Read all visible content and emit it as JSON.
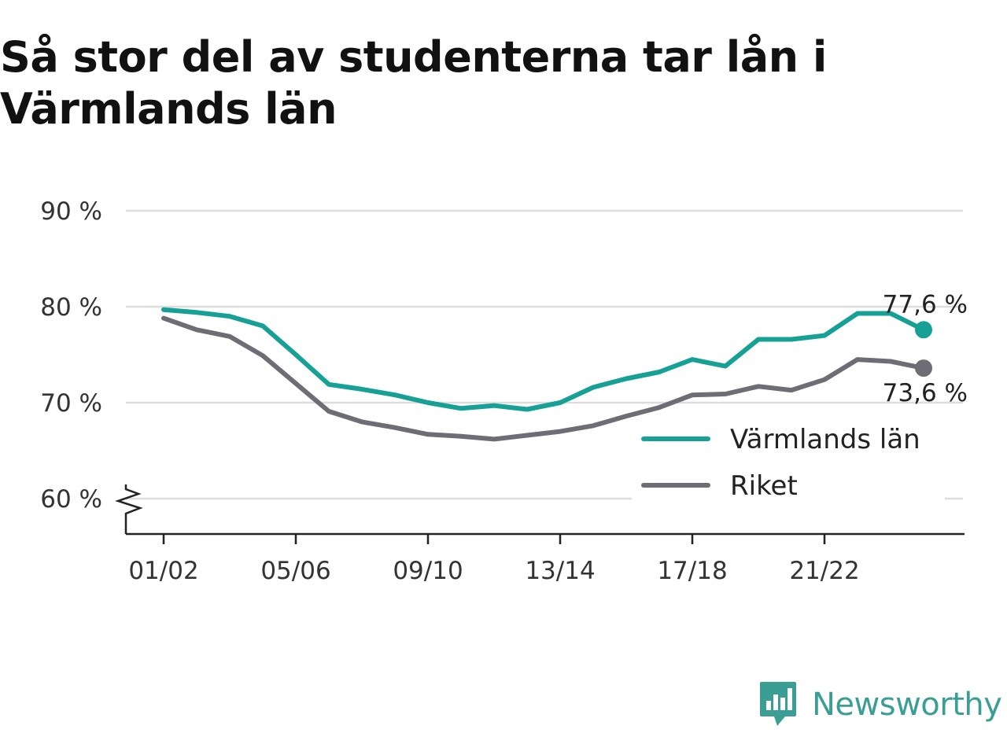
{
  "title": "Så stor del av studenterna tar lån i Värmlands län",
  "chart_data": {
    "type": "line",
    "title": "Så stor del av studenterna tar lån i Värmlands län",
    "x": [
      "01/02",
      "02/03",
      "03/04",
      "04/05",
      "05/06",
      "06/07",
      "07/08",
      "08/09",
      "09/10",
      "10/11",
      "11/12",
      "12/13",
      "13/14",
      "14/15",
      "15/16",
      "16/17",
      "17/18",
      "18/19",
      "19/20",
      "20/21",
      "21/22",
      "22/23",
      "23/24",
      "24/25"
    ],
    "x_tick_labels": [
      "01/02",
      "05/06",
      "09/10",
      "13/14",
      "17/18",
      "21/22"
    ],
    "y_tick_labels": [
      "60 %",
      "70 %",
      "80 %",
      "90 %"
    ],
    "y_ticks": [
      60,
      70,
      80,
      90
    ],
    "ylim": [
      56.3,
      90
    ],
    "xlabel": "",
    "ylabel": "",
    "y_axis_break": true,
    "grid": true,
    "legend_position": "bottom-right",
    "series": [
      {
        "name": "Värmlands län",
        "color": "#17a095",
        "values": [
          79.7,
          79.4,
          79.0,
          78.0,
          75.0,
          71.9,
          71.4,
          70.8,
          70.0,
          69.4,
          69.7,
          69.3,
          70.0,
          71.6,
          72.5,
          73.2,
          74.5,
          73.8,
          76.6,
          76.6,
          77.0,
          79.3,
          79.3,
          77.6
        ],
        "end_label": "77,6 %"
      },
      {
        "name": "Riket",
        "color": "#6e6d75",
        "values": [
          78.8,
          77.6,
          76.9,
          74.9,
          72.0,
          69.1,
          68.0,
          67.4,
          66.7,
          66.5,
          66.2,
          66.6,
          67.0,
          67.6,
          68.6,
          69.5,
          70.8,
          70.9,
          71.7,
          71.3,
          72.4,
          74.5,
          74.3,
          73.6
        ],
        "end_label": "73,6 %"
      }
    ]
  },
  "brand": {
    "name": "Newsworthy",
    "logo_icon": "newsworthy-logo-icon",
    "color": "#3a9e95"
  }
}
